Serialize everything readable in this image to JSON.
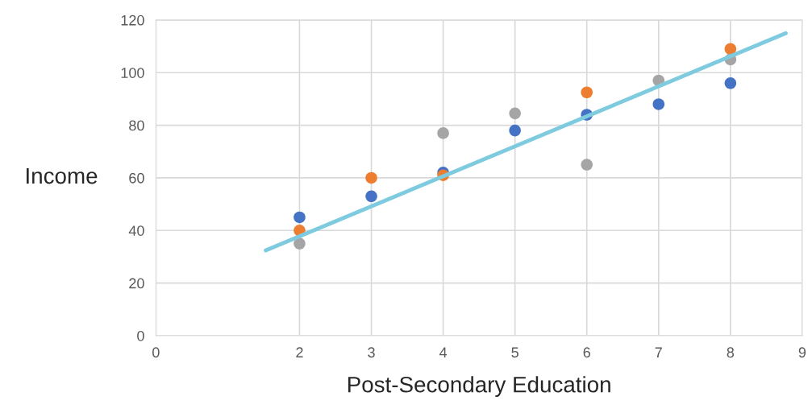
{
  "chart_data": {
    "type": "scatter",
    "xlabel": "Post-Secondary Education",
    "ylabel": "Income",
    "xlim": [
      0,
      9
    ],
    "xticks": [
      0,
      2,
      3,
      4,
      5,
      6,
      7,
      8,
      9
    ],
    "ylim": [
      0,
      120
    ],
    "yticks": [
      0,
      20,
      40,
      60,
      80,
      100,
      120
    ],
    "grid": true,
    "marker": "circle",
    "series": [
      {
        "color": "#4472c4",
        "x": [
          2,
          3,
          4,
          5,
          6,
          7,
          8
        ],
        "values": [
          45,
          53,
          62,
          78,
          84,
          88,
          96
        ]
      },
      {
        "color": "#ed7d31",
        "x": [
          2,
          3,
          4,
          5,
          6,
          7,
          8
        ],
        "values": [
          40,
          60,
          61,
          null,
          92.5,
          null,
          109
        ]
      },
      {
        "color": "#a5a5a5",
        "x": [
          2,
          3,
          4,
          5,
          6,
          7,
          8
        ],
        "values": [
          35,
          null,
          77,
          84.5,
          65,
          97,
          105
        ]
      },
      {
        "type": "line",
        "marker": "none",
        "color": "#7ecbe0",
        "x": [
          1.53,
          8.77
        ],
        "values": [
          32.4,
          115
        ]
      }
    ]
  }
}
